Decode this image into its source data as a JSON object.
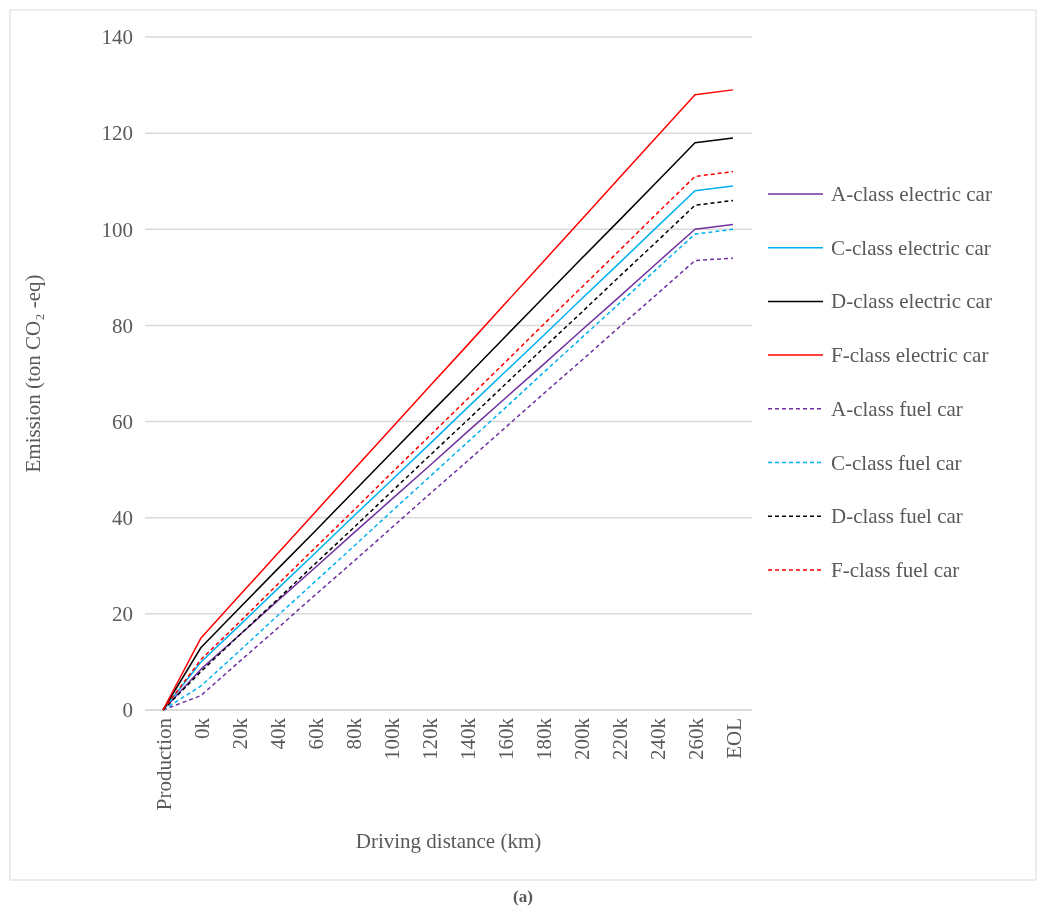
{
  "chart_data": {
    "type": "line",
    "xlabel": "Driving distance (km)",
    "ylabel": "Emission (ton CO₂ -eq)",
    "categories": [
      "Production",
      "0k",
      "20k",
      "40k",
      "60k",
      "80k",
      "100k",
      "120k",
      "140k",
      "160k",
      "180k",
      "200k",
      "220k",
      "240k",
      "260k",
      "EOL"
    ],
    "ylim": [
      0,
      140
    ],
    "yticks": [
      0,
      20,
      40,
      60,
      80,
      100,
      120,
      140
    ],
    "grid": "y",
    "legend": "right",
    "marker": "none",
    "annotations": [
      "(a)"
    ],
    "series": [
      {
        "name": "A-class electric car",
        "color": "#7030a0",
        "line_style": "solid",
        "values": [
          0,
          8.5,
          15.5,
          22.6,
          29.6,
          36.7,
          43.7,
          50.7,
          57.8,
          64.8,
          71.8,
          78.9,
          85.9,
          93,
          100,
          101
        ]
      },
      {
        "name": "C-class electric car",
        "color": "#00b0f0",
        "line_style": "solid",
        "values": [
          0,
          10,
          17.5,
          25.1,
          32.6,
          40.2,
          47.7,
          55.2,
          62.8,
          70.3,
          77.8,
          85.4,
          92.9,
          100.5,
          108,
          109
        ]
      },
      {
        "name": "D-class electric car",
        "color": "#000000",
        "line_style": "solid",
        "values": [
          0,
          13,
          21.1,
          29.2,
          37.2,
          45.3,
          53.4,
          61.5,
          69.5,
          77.6,
          85.7,
          93.8,
          101.8,
          109.9,
          118,
          119
        ]
      },
      {
        "name": "F-class electric car",
        "color": "#ff0000",
        "line_style": "solid",
        "values": [
          0,
          15,
          23.7,
          32.4,
          41.1,
          49.8,
          58.5,
          67.2,
          75.8,
          84.5,
          93.2,
          101.9,
          110.6,
          119.3,
          128,
          129
        ]
      },
      {
        "name": "A-class fuel car",
        "color": "#7030a0",
        "line_style": "dashed",
        "values": [
          0,
          3,
          10,
          16.9,
          23.9,
          30.8,
          37.8,
          44.8,
          51.7,
          58.7,
          65.7,
          72.6,
          79.6,
          86.5,
          93.5,
          94
        ]
      },
      {
        "name": "C-class fuel car",
        "color": "#00b0f0",
        "line_style": "dashed",
        "values": [
          0,
          5,
          12.2,
          19.5,
          26.7,
          33.9,
          41.2,
          48.4,
          55.6,
          62.8,
          70.1,
          77.3,
          84.5,
          91.8,
          99,
          100
        ]
      },
      {
        "name": "D-class fuel car",
        "color": "#000000",
        "line_style": "dashed",
        "values": [
          0,
          8,
          15.5,
          22.9,
          30.4,
          37.8,
          45.3,
          52.8,
          60.2,
          67.7,
          75.2,
          82.6,
          90.1,
          97.5,
          105,
          106
        ]
      },
      {
        "name": "F-class fuel car",
        "color": "#ff0000",
        "line_style": "dashed",
        "values": [
          0,
          10.5,
          18.2,
          26,
          33.7,
          41.4,
          49.2,
          56.9,
          64.6,
          72.3,
          80.1,
          87.8,
          95.5,
          103.3,
          111,
          112
        ]
      }
    ]
  }
}
